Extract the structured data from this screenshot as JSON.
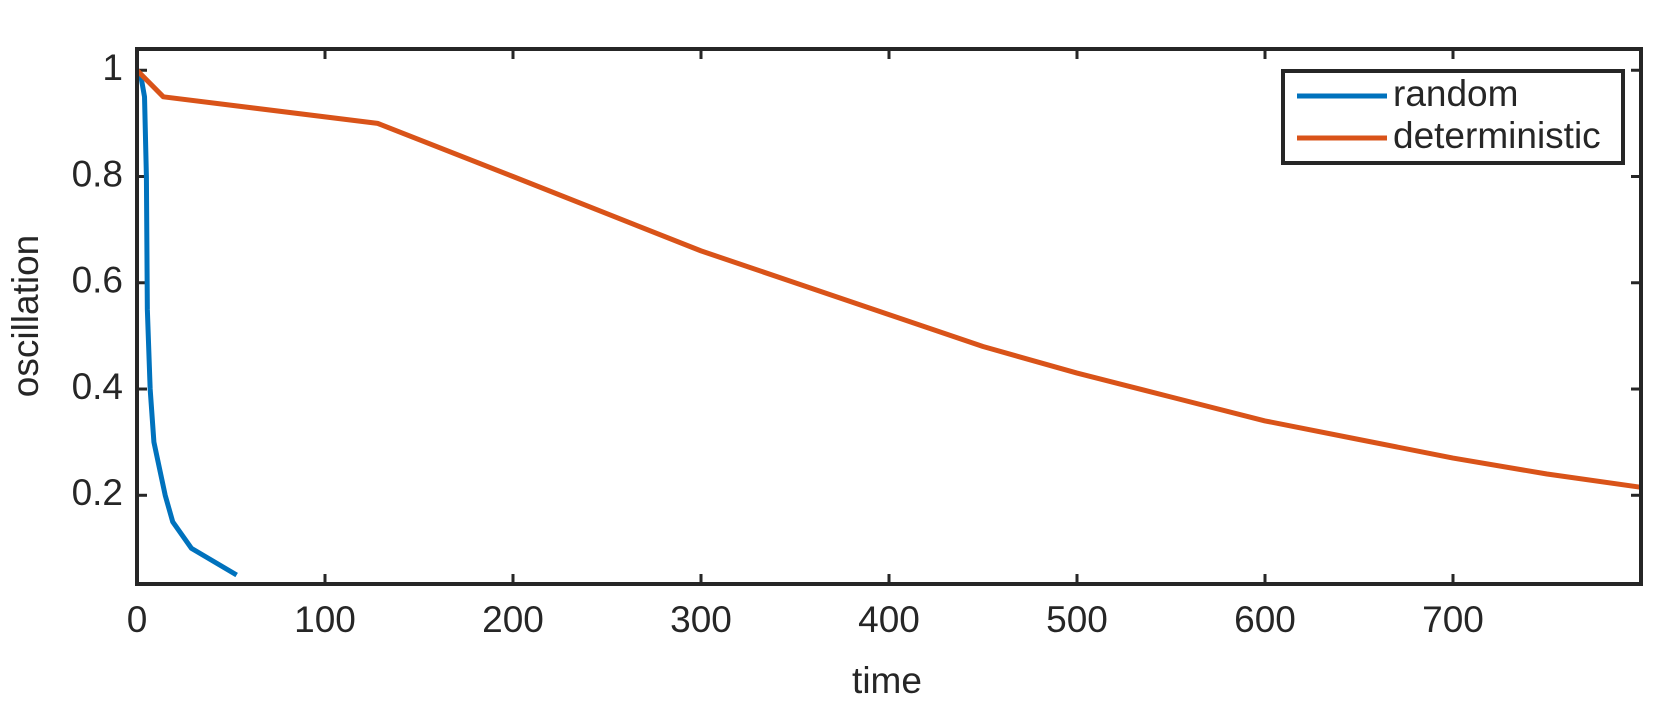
{
  "chart_data": {
    "type": "line",
    "x_label": "time",
    "y_label": "oscillation",
    "xlim": [
      0,
      800
    ],
    "ylim": [
      0.033,
      1.04
    ],
    "xticks": [
      0,
      100,
      200,
      300,
      400,
      500,
      600,
      700
    ],
    "yticks": [
      0.2,
      0.4,
      0.6,
      0.8,
      1
    ],
    "legend": "northeast",
    "series": [
      {
        "name": "random",
        "color": "#0072bd",
        "x": [
          0,
          2,
          4,
          5,
          5.5,
          7,
          9,
          12,
          15,
          19,
          29,
          53
        ],
        "values": [
          1,
          0.99,
          0.95,
          0.8,
          0.55,
          0.4,
          0.3,
          0.25,
          0.2,
          0.15,
          0.1,
          0.05
        ]
      },
      {
        "name": "deterministic",
        "color": "#d95319",
        "x": [
          0,
          14,
          128,
          200,
          250,
          300,
          350,
          400,
          450,
          500,
          550,
          600,
          650,
          700,
          750,
          800
        ],
        "values": [
          1,
          0.95,
          0.9,
          0.8,
          0.73,
          0.66,
          0.6,
          0.54,
          0.48,
          0.43,
          0.385,
          0.34,
          0.305,
          0.27,
          0.24,
          0.215
        ]
      }
    ]
  }
}
